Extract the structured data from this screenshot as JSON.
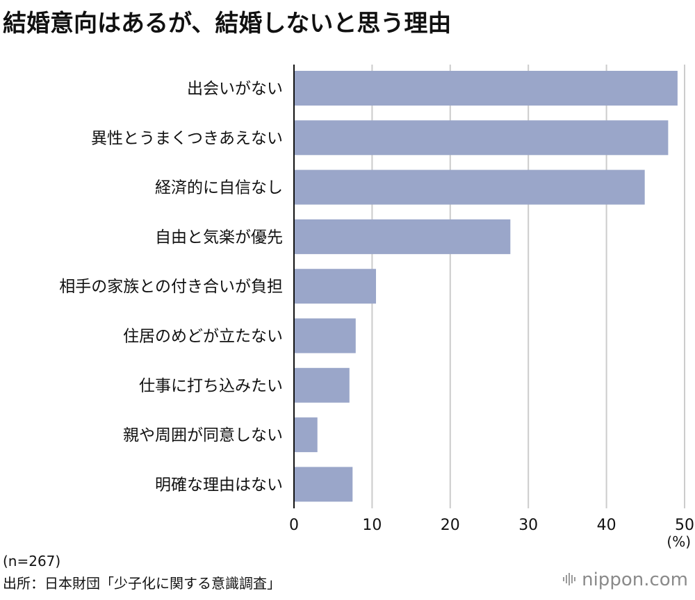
{
  "title": "結婚意向はあるが、結婚しないと思う理由",
  "chart_data": {
    "type": "bar",
    "orientation": "horizontal",
    "title": "結婚意向はあるが、結婚しないと思う理由",
    "categories": [
      "出会いがない",
      "異性とうまくつきあえない",
      "経済的に自信なし",
      "自由と気楽が優先",
      "相手の家族との付き合いが負担",
      "住居のめどが立たない",
      "仕事に打ち込みたい",
      "親や周囲が同意しない",
      "明確な理由はない"
    ],
    "values": [
      49.1,
      47.9,
      44.9,
      27.7,
      10.5,
      7.9,
      7.1,
      3.0,
      7.5
    ],
    "xlabel": "(%)",
    "ylabel": "",
    "xlim": [
      0,
      50
    ],
    "xticks": [
      0,
      10,
      20,
      30,
      40,
      50
    ],
    "grid": true,
    "bar_color": "#9aa6c9",
    "grid_color": "#cccccc"
  },
  "unit_label": "(%)",
  "sample_note": "(n=267)",
  "source": "出所：日本財団「少子化に関する意識調査」",
  "brand": "nippon.com"
}
